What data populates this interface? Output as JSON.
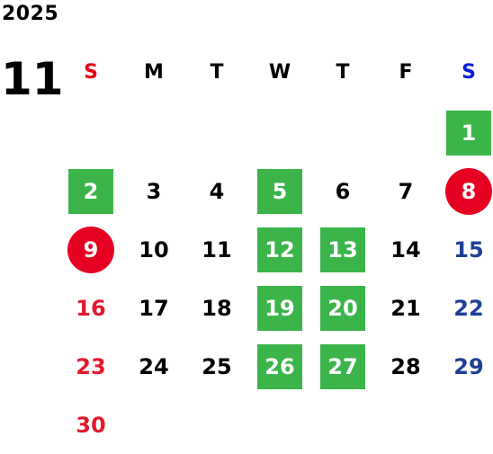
{
  "header": {
    "year": "2025",
    "month": "11"
  },
  "weekdays": [
    {
      "label": "S",
      "type": "sun"
    },
    {
      "label": "M",
      "type": ""
    },
    {
      "label": "T",
      "type": ""
    },
    {
      "label": "W",
      "type": ""
    },
    {
      "label": "T",
      "type": ""
    },
    {
      "label": "F",
      "type": ""
    },
    {
      "label": "S",
      "type": "sat"
    }
  ],
  "highlight_colors": {
    "green": "#3bb54a",
    "red": "#e60022",
    "sunday_text": "#e3182d",
    "saturday_text": "#1f3f97"
  },
  "weeks": [
    [
      "",
      "",
      "",
      "",
      "",
      "",
      "1"
    ],
    [
      "2",
      "3",
      "4",
      "5",
      "6",
      "7",
      "8"
    ],
    [
      "9",
      "10",
      "11",
      "12",
      "13",
      "14",
      "15"
    ],
    [
      "16",
      "17",
      "18",
      "19",
      "20",
      "21",
      "22"
    ],
    [
      "23",
      "24",
      "25",
      "26",
      "27",
      "28",
      "29"
    ],
    [
      "30",
      "",
      "",
      "",
      "",
      "",
      ""
    ]
  ],
  "styles": {
    "1": "green",
    "2": "green",
    "5": "green",
    "8": "red",
    "9": "red",
    "12": "green",
    "13": "green",
    "19": "green",
    "20": "green",
    "26": "green",
    "27": "green"
  }
}
